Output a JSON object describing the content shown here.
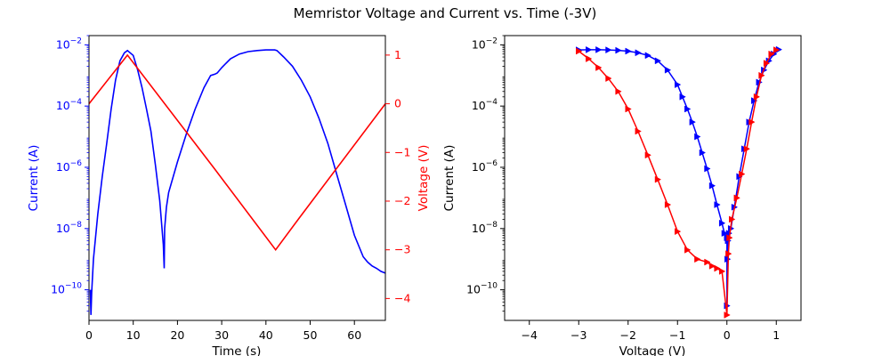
{
  "figure": {
    "title": "Memristor Voltage and Current vs. Time (-3V)"
  },
  "chart_data": [
    {
      "type": "line",
      "panel": "left",
      "xlabel": "Time (s)",
      "ylabel_left": "Current (A)",
      "ylabel_right": "Voltage (V)",
      "xlim": [
        0,
        67
      ],
      "ylim_left": [
        1e-11,
        0.02
      ],
      "yscale_left": "log",
      "ylim_right": [
        -4.45,
        1.4
      ],
      "xticks": [
        0,
        10,
        20,
        30,
        40,
        50,
        60
      ],
      "xtick_labels": [
        "0",
        "10",
        "20",
        "30",
        "40",
        "50",
        "60"
      ],
      "yticks_left_exp": [
        -10,
        -8,
        -6,
        -4,
        -2
      ],
      "yticks_right": [
        1,
        0,
        -1,
        -2,
        -3,
        -4
      ],
      "ytick_right_labels": [
        "1",
        "0",
        "−1",
        "−2",
        "−3",
        "−4"
      ],
      "colors": {
        "current": "#0000ff",
        "voltage": "#ff0000",
        "left_axis": "#0000ff",
        "right_axis": "#ff0000"
      },
      "series": [
        {
          "axis": "left",
          "color": "#0000ff",
          "x": [
            0.3,
            0.45,
            0.6,
            1,
            2,
            3,
            4,
            5,
            6,
            7,
            8,
            8.7,
            10,
            11,
            12,
            13,
            14,
            15,
            16,
            16.8,
            17.0,
            17.1,
            17.5,
            18,
            20,
            22,
            24,
            26,
            27.5,
            28.5,
            29,
            30,
            32,
            34,
            36,
            38,
            40,
            42,
            42.5,
            44,
            46,
            48,
            50,
            52,
            54,
            56,
            58,
            60,
            62,
            63,
            64,
            65,
            66,
            67
          ],
          "y": [
            1e-10,
            1.5e-11,
            8e-11,
            1e-09,
            3e-08,
            5e-07,
            6e-06,
            8e-05,
            0.0007,
            0.003,
            0.0055,
            0.0065,
            0.0045,
            0.0015,
            0.0004,
            8e-05,
            1.5e-05,
            1.2e-06,
            8e-08,
            3e-09,
            5e-10,
            1e-08,
            5e-08,
            1.5e-07,
            1.5e-06,
            1.2e-05,
            8e-05,
            0.0004,
            0.001,
            0.0011,
            0.0012,
            0.0018,
            0.0035,
            0.005,
            0.006,
            0.0065,
            0.0068,
            0.0068,
            0.0065,
            0.004,
            0.002,
            0.0007,
            0.0002,
            4e-05,
            6e-06,
            6e-07,
            6e-08,
            6e-09,
            1.2e-09,
            8e-10,
            6e-10,
            5e-10,
            4e-10,
            3.5e-10
          ]
        },
        {
          "axis": "right",
          "color": "#ff0000",
          "x": [
            0,
            8.7,
            28.5,
            42.2,
            47.5,
            67
          ],
          "y": [
            0,
            1,
            -1.35,
            -3,
            -2.35,
            0
          ]
        }
      ]
    },
    {
      "type": "scatter",
      "panel": "right",
      "xlabel": "Voltage (V)",
      "ylabel": "Current (A)",
      "xlim": [
        -4.5,
        1.5
      ],
      "ylim": [
        1e-11,
        0.02
      ],
      "yscale": "log",
      "xticks": [
        -4,
        -3,
        -2,
        -1,
        0,
        1
      ],
      "xtick_labels": [
        "−4",
        "−3",
        "−2",
        "−1",
        "0",
        "1"
      ],
      "yticks_exp": [
        -10,
        -8,
        -6,
        -4,
        -2
      ],
      "series": [
        {
          "color": "#0000ff",
          "marker": "triangle",
          "x": [
            1.05,
            0.95,
            0.85,
            0.75,
            0.65,
            0.55,
            0.45,
            0.35,
            0.25,
            0.15,
            0.08,
            0.04,
            0.02,
            0.01,
            0,
            0,
            -0.05,
            -0.1,
            -0.2,
            -0.3,
            -0.4,
            -0.5,
            -0.6,
            -0.7,
            -0.8,
            -0.9,
            -1,
            -1.2,
            -1.4,
            -1.6,
            -1.8,
            -2,
            -2.2,
            -2.4,
            -2.6,
            -2.8,
            -3
          ],
          "y": [
            0.007,
            0.005,
            0.003,
            0.0015,
            0.0006,
            0.00015,
            3e-05,
            4e-06,
            5e-07,
            5e-08,
            1e-08,
            7e-09,
            4e-09,
            1e-09,
            3e-11,
            5e-09,
            7e-09,
            1.5e-08,
            6e-08,
            2.5e-07,
            9e-07,
            3e-06,
            1e-05,
            3e-05,
            8e-05,
            0.0002,
            0.0005,
            0.0015,
            0.003,
            0.0045,
            0.0055,
            0.0062,
            0.0066,
            0.0068,
            0.0069,
            0.0069,
            0.0068
          ]
        },
        {
          "color": "#ff0000",
          "marker": "triangle",
          "x": [
            -3,
            -2.8,
            -2.6,
            -2.4,
            -2.2,
            -2,
            -1.8,
            -1.6,
            -1.4,
            -1.2,
            -1,
            -0.8,
            -0.6,
            -0.4,
            -0.3,
            -0.2,
            -0.1,
            0,
            0.03,
            0.05,
            0.1,
            0.2,
            0.3,
            0.4,
            0.5,
            0.6,
            0.7,
            0.8,
            0.9,
            1
          ],
          "y": [
            0.0062,
            0.0035,
            0.0018,
            0.0008,
            0.0003,
            8e-05,
            1.5e-05,
            2.5e-06,
            4e-07,
            6e-08,
            8e-09,
            2e-09,
            1e-09,
            8e-10,
            6e-10,
            5e-10,
            4e-10,
            1.5e-11,
            1.5e-09,
            5e-09,
            2e-08,
            1e-07,
            6e-07,
            4e-06,
            3e-05,
            0.0002,
            0.001,
            0.0025,
            0.005,
            0.0068
          ]
        }
      ]
    }
  ]
}
